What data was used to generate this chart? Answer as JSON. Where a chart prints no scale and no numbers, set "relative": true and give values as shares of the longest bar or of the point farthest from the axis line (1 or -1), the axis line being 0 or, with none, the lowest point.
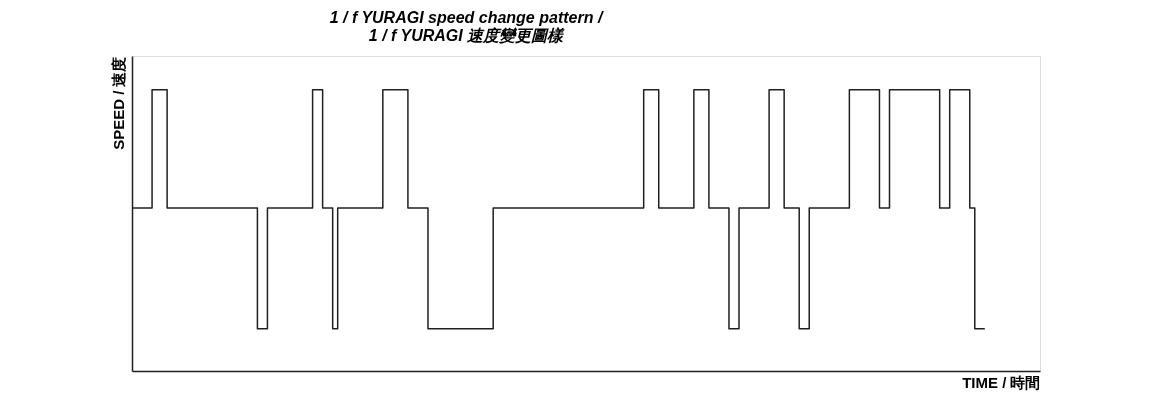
{
  "chart_data": {
    "type": "step",
    "title": [
      "1 / f YURAGI speed change pattern /",
      "1 / f YURAGI 速度變更圖樣"
    ],
    "xlabel": "TIME / 時間",
    "ylabel": "SPEED / 速度",
    "relative": true,
    "categories": [
      null,
      null,
      null,
      null,
      null,
      null,
      null,
      null,
      null,
      null,
      null,
      null,
      null,
      null,
      null,
      null,
      null,
      null,
      null,
      null,
      null,
      null,
      null,
      null,
      null,
      null,
      null,
      null,
      null,
      null,
      null,
      null,
      null,
      null,
      null,
      null,
      null,
      null,
      null,
      null,
      null,
      null,
      null,
      null,
      null,
      null,
      null,
      null,
      null,
      null,
      null,
      null,
      null,
      null,
      null,
      null,
      null,
      null,
      null,
      null,
      null,
      null,
      null,
      null,
      null,
      null,
      null,
      null,
      null,
      null,
      null,
      null,
      null,
      null,
      null,
      null,
      null,
      null,
      null,
      null,
      null,
      null,
      null,
      null,
      null,
      null,
      null,
      null,
      null,
      null,
      null,
      null,
      null,
      null,
      null,
      null,
      null,
      null,
      null,
      null,
      null,
      null,
      null,
      null,
      null,
      null,
      null,
      null,
      null,
      null,
      null,
      null,
      null,
      null,
      null,
      null,
      null,
      null,
      null,
      null,
      null,
      null,
      null,
      null,
      null,
      null,
      null,
      null,
      null,
      null,
      null,
      null,
      null,
      null,
      null,
      null,
      null,
      null,
      null,
      null,
      null,
      null,
      null,
      null,
      null,
      null,
      null,
      null,
      null,
      null,
      null,
      null,
      null,
      null,
      null,
      null,
      null,
      null,
      null,
      null,
      null,
      null,
      null,
      null,
      null,
      null,
      null,
      null,
      null,
      null,
      null,
      null,
      null,
      null,
      null,
      null,
      null,
      null,
      null,
      null,
      null,
      null
    ],
    "series": [
      {
        "color": "#231f20",
        "values": [
          0.58,
          0.58,
          0.58,
          0.58,
          1,
          1,
          1,
          0.58,
          0.58,
          0.58,
          0.58,
          0.58,
          0.58,
          0.58,
          0.58,
          0.58,
          0.58,
          0.58,
          0.58,
          0.58,
          0.58,
          0.58,
          0.58,
          0.58,
          0.58,
          0.15,
          0.15,
          0.58,
          0.58,
          0.58,
          0.58,
          0.58,
          0.58,
          0.58,
          0.58,
          0.58,
          1,
          1,
          0.58,
          0.58,
          0.15,
          0.58,
          0.58,
          0.58,
          0.58,
          0.58,
          0.58,
          0.58,
          0.58,
          0.58,
          1,
          1,
          1,
          1,
          1,
          0.58,
          0.58,
          0.58,
          0.58,
          0.15,
          0.15,
          0.15,
          0.15,
          0.15,
          0.15,
          0.15,
          0.15,
          0.15,
          0.15,
          0.15,
          0.15,
          0.15,
          0.58,
          0.58,
          0.58,
          0.58,
          0.58,
          0.58,
          0.58,
          0.58,
          0.58,
          0.58,
          0.58,
          0.58,
          0.58,
          0.58,
          0.58,
          0.58,
          0.58,
          0.58,
          0.58,
          0.58,
          0.58,
          0.58,
          0.58,
          0.58,
          0.58,
          0.58,
          0.58,
          0.58,
          0.58,
          0.58,
          1,
          1,
          1,
          0.58,
          0.58,
          0.58,
          0.58,
          0.58,
          0.58,
          0.58,
          1,
          1,
          1,
          0.58,
          0.58,
          0.58,
          0.58,
          0.15,
          0.15,
          0.58,
          0.58,
          0.58,
          0.58,
          0.58,
          0.58,
          1,
          1,
          1,
          0.58,
          0.58,
          0.58,
          0.15,
          0.15,
          0.58,
          0.58,
          0.58,
          0.58,
          0.58,
          0.58,
          0.58,
          0.58,
          1,
          1,
          1,
          1,
          1,
          1,
          0.58,
          0.58,
          1,
          1,
          1,
          1,
          1,
          1,
          1,
          1,
          1,
          1,
          0.58,
          0.58,
          1,
          1,
          1,
          1,
          0.58,
          0.15,
          0.15,
          0.15,
          null,
          null,
          null,
          null,
          null,
          null,
          null,
          null,
          null,
          null,
          null
        ]
      }
    ],
    "marker": "none",
    "line_style": "solid"
  }
}
